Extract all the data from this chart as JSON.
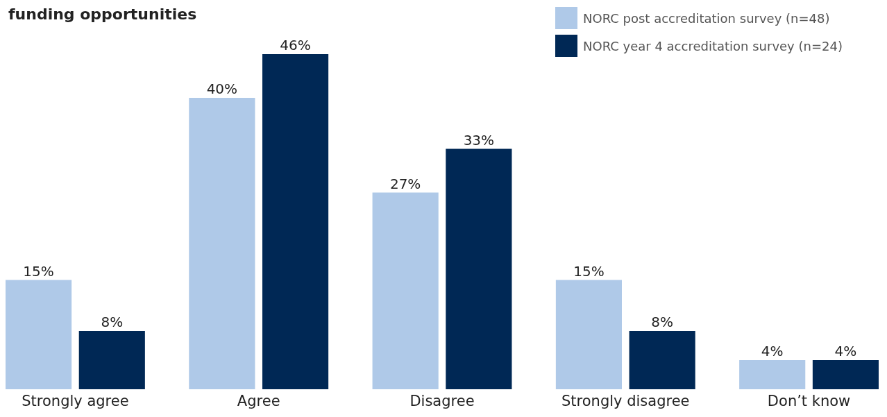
{
  "chart_data": {
    "type": "bar",
    "title": "funding opportunities",
    "categories": [
      "Strongly agree",
      "Agree",
      "Disagree",
      "Strongly disagree",
      "Don’t know"
    ],
    "series": [
      {
        "name": "NORC post accreditation survey (n=48)",
        "color": "#afc9e8",
        "values": [
          15,
          40,
          27,
          15,
          4
        ],
        "value_labels": [
          "15%",
          "40%",
          "27%",
          "15%",
          "4%"
        ]
      },
      {
        "name": "NORC year 4 accreditation survey (n=24)",
        "color": "#002855",
        "values": [
          8,
          46,
          33,
          8,
          4
        ],
        "value_labels": [
          "8%",
          "46%",
          "33%",
          "8%",
          "4%"
        ]
      }
    ],
    "legend": "top right",
    "tick_labels": "x"
  }
}
